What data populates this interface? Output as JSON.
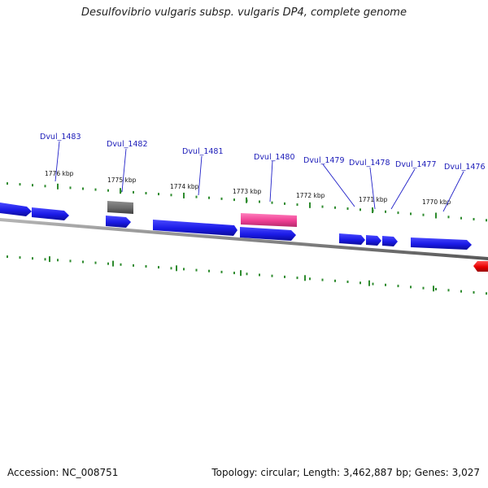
{
  "title": "Desulfovibrio vulgaris subsp. vulgaris DP4, complete genome",
  "accession": "Accession: NC_008751",
  "summary": "Topology: circular; Length: 3,462,887 bp; Genes: 3,027",
  "colors": {
    "forward_gene": "#1a1ae6",
    "highlight_gene": "#ee3f93",
    "rna_gene": "#6b6b6b",
    "reverse_gene": "#e80000",
    "ticks": "#2e8b2e",
    "backbone": "#8a8a8a",
    "label": "#1a1ab8"
  },
  "tick_labels": [
    "1776 kbp",
    "1775 kbp",
    "1774 kbp",
    "1773 kbp",
    "1772 kbp",
    "1771 kbp",
    "1770 kbp"
  ],
  "gene_labels": [
    "Dvul_1483",
    "Dvul_1482",
    "Dvul_1481",
    "Dvul_1480",
    "Dvul_1479",
    "Dvul_1478",
    "Dvul_1477",
    "Dvul_1476"
  ]
}
